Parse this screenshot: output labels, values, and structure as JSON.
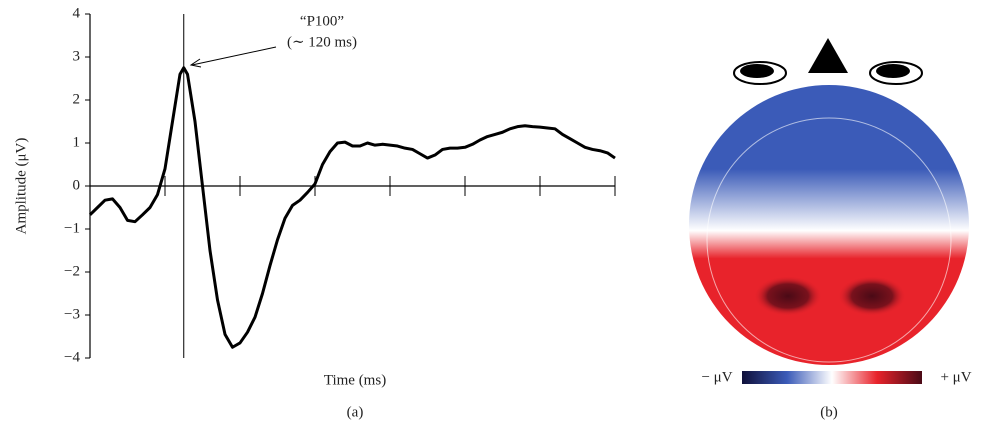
{
  "chart_data": [
    {
      "type": "line",
      "xlabel": "Time (ms)",
      "ylabel": "Amplitude (μV)",
      "panel": "(a)",
      "annotation": [
        "“P100”",
        "(∼ 120 ms)"
      ],
      "vline": 125,
      "xlim": [
        0,
        700
      ],
      "xticks": [
        0,
        100,
        200,
        300,
        400,
        500,
        600,
        700
      ],
      "ylim": [
        -4,
        4
      ],
      "yticks": [
        {
          "value": -4,
          "label": "−4"
        },
        {
          "value": -3,
          "label": "−3"
        },
        {
          "value": -2,
          "label": "−2"
        },
        {
          "value": -1,
          "label": "−1"
        },
        0,
        1,
        2,
        3,
        4
      ],
      "x": [
        0,
        10,
        20,
        30,
        40,
        50,
        60,
        70,
        80,
        90,
        100,
        110,
        120,
        125,
        130,
        140,
        150,
        160,
        170,
        180,
        190,
        200,
        210,
        220,
        230,
        240,
        250,
        260,
        270,
        280,
        290,
        300,
        310,
        320,
        330,
        340,
        350,
        360,
        370,
        380,
        390,
        400,
        410,
        420,
        430,
        440,
        450,
        460,
        470,
        480,
        490,
        500,
        510,
        520,
        530,
        540,
        550,
        560,
        570,
        580,
        590,
        600,
        610,
        620,
        630,
        640,
        650,
        660,
        670,
        680,
        690,
        700
      ],
      "series": [
        {
          "color": "#000000",
          "values": [
            -0.67,
            -0.5,
            -0.33,
            -0.3,
            -0.5,
            -0.8,
            -0.83,
            -0.67,
            -0.5,
            -0.2,
            0.4,
            1.5,
            2.6,
            2.75,
            2.6,
            1.5,
            0,
            -1.5,
            -2.65,
            -3.45,
            -3.75,
            -3.65,
            -3.4,
            -3.05,
            -2.5,
            -1.85,
            -1.25,
            -0.75,
            -0.45,
            -0.33,
            -0.15,
            0.05,
            0.5,
            0.8,
            1.0,
            1.02,
            0.93,
            0.93,
            1.0,
            0.95,
            0.97,
            0.95,
            0.93,
            0.88,
            0.85,
            0.75,
            0.65,
            0.72,
            0.85,
            0.88,
            0.88,
            0.9,
            0.97,
            1.07,
            1.15,
            1.2,
            1.25,
            1.33,
            1.38,
            1.4,
            1.38,
            1.37,
            1.35,
            1.33,
            1.2,
            1.1,
            1.0,
            0.9,
            0.85,
            0.82,
            0.77,
            0.65
          ]
        }
      ]
    },
    {
      "type": "topomap",
      "panel": "(b)",
      "colorbar_labels": [
        "− μV",
        "+ μV"
      ],
      "colormap": [
        "#10103a",
        "#3b5bb8",
        "#ffffff",
        "#e8232b",
        "#4a0a16"
      ]
    }
  ]
}
